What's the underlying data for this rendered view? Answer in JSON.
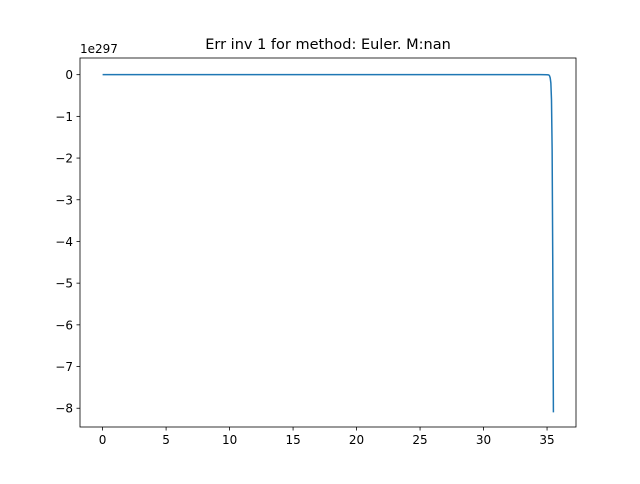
{
  "chart_data": {
    "type": "line",
    "title": "Err inv 1 for method: Euler. M:nan",
    "xlabel": "",
    "ylabel": "",
    "y_offset_label": "1e297",
    "xlim": [
      -1.78,
      37.28
    ],
    "ylim": [
      -8.45,
      0.4
    ],
    "xticks": [
      0,
      5,
      10,
      15,
      20,
      25,
      30,
      35
    ],
    "xtick_labels": [
      "0",
      "5",
      "10",
      "15",
      "20",
      "25",
      "30",
      "35"
    ],
    "yticks": [
      0,
      -1,
      -2,
      -3,
      -4,
      -5,
      -6,
      -7,
      -8
    ],
    "ytick_labels": [
      "0",
      "−1",
      "−2",
      "−3",
      "−4",
      "−5",
      "−6",
      "−7",
      "−8"
    ],
    "grid": false,
    "colors": {
      "line": "#1f77b4",
      "axes": "#000000",
      "background": "#ffffff"
    },
    "series": [
      {
        "x": [
          0,
          5,
          10,
          15,
          20,
          25,
          30,
          34.5,
          35.0,
          35.1,
          35.15,
          35.2,
          35.25,
          35.3,
          35.35,
          35.4,
          35.45,
          35.5
        ],
        "y": [
          0,
          0,
          0,
          0,
          0,
          0,
          0,
          0,
          -0.002,
          -0.005,
          -0.01,
          -0.03,
          -0.08,
          -0.2,
          -0.6,
          -1.8,
          -4.5,
          -8.1
        ]
      }
    ]
  }
}
